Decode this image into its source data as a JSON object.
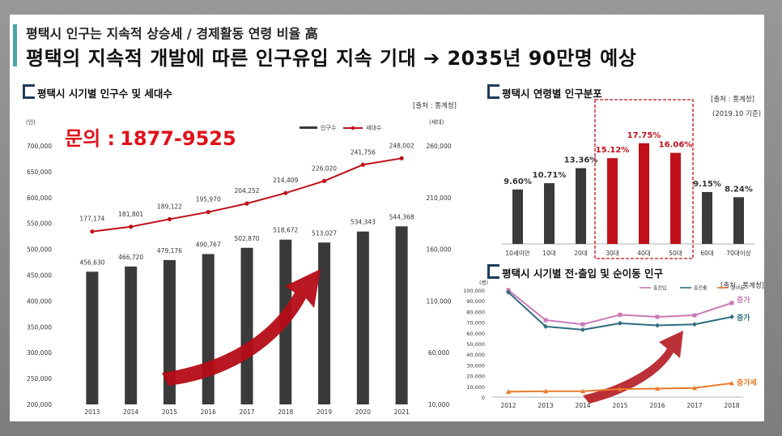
{
  "header": {
    "subtitle": "평택시 인구는 지속적 상승세 / 경제활동 연령 비율 高",
    "title": "평택의 지속적 개발에 따른 인구유입 지속 기대 ➔ 2035년 90만명 예상"
  },
  "contact": {
    "label": "문의 :",
    "phone": "1877-9525"
  },
  "colors": {
    "bar_dark": "#3a3a3a",
    "line_red": "#c0101a",
    "highlight_red": "#c0101a",
    "line_pink": "#c87ab8",
    "line_teal": "#2f6d80",
    "line_orange": "#e87a2a",
    "accent_teal": "#4fa3a7"
  },
  "chart_data": [
    {
      "type": "bar",
      "title": "평택시 시기별 인구수 및 세대수",
      "source": "[출처 : 통계청]",
      "ylabel_left": "(인)",
      "ylabel_right": "(세대)",
      "legend_position": "top-right",
      "categories": [
        "2013",
        "2014",
        "2015",
        "2016",
        "2017",
        "2018",
        "2019",
        "2020",
        "2021"
      ],
      "left_ticks": [
        "700,000",
        "650,000",
        "600,000",
        "550,000",
        "500,000",
        "450,000",
        "400,000",
        "350,000",
        "300,000",
        "250,000",
        "200,000"
      ],
      "right_ticks": [
        "260,000",
        "210,000",
        "160,000",
        "110,000",
        "60,000",
        "10,000"
      ],
      "ylim": [
        200000,
        700000
      ],
      "ylim_right": [
        10000,
        260000
      ],
      "series": [
        {
          "name": "인구수",
          "kind": "bar",
          "axis": "left",
          "values": [
            456630,
            466720,
            479176,
            490767,
            502870,
            518672,
            513027,
            534343,
            544368
          ],
          "labels": [
            "456,630",
            "466,720",
            "479,176",
            "490,767",
            "502,870",
            "518,672",
            "513,027",
            "534,343",
            "544,368"
          ]
        },
        {
          "name": "세대수",
          "kind": "line",
          "axis": "right",
          "values": [
            177174,
            181801,
            189122,
            195970,
            204252,
            214409,
            226020,
            241756,
            248002
          ],
          "labels": [
            "177,174",
            "181,801",
            "189,122",
            "195,970",
            "204,252",
            "214,409",
            "226,020",
            "241,756",
            "248,002"
          ]
        }
      ]
    },
    {
      "type": "bar",
      "title": "평택시 연령별 인구분포",
      "source": "[출처 : 통계청]",
      "note": "(2019.10 기준)",
      "categories": [
        "10세미만",
        "10대",
        "20대",
        "30대",
        "40대",
        "50대",
        "60대",
        "70대이상"
      ],
      "values": [
        9.6,
        10.71,
        13.36,
        15.12,
        17.75,
        16.06,
        9.15,
        8.24
      ],
      "labels": [
        "9.60%",
        "10.71%",
        "13.36%",
        "15.12%",
        "17.75%",
        "16.06%",
        "9.15%",
        "8.24%"
      ],
      "highlight": [
        "30대",
        "40대",
        "50대"
      ],
      "ylim": [
        0,
        20
      ]
    },
    {
      "type": "line",
      "title": "평택시 시기별 전·출입 및 순이동 인구",
      "source": "[출처 : 통계청]",
      "ylabel": "(명)",
      "x": [
        "2012",
        "2013",
        "2014",
        "2015",
        "2016",
        "2017",
        "2018"
      ],
      "y_ticks": [
        "100,000",
        "90,000",
        "80,000",
        "70,000",
        "60,000",
        "50,000",
        "40,000",
        "30,000",
        "20,000",
        "10,000",
        "0"
      ],
      "ylim": [
        0,
        100000
      ],
      "legend_position": "top-right",
      "series": [
        {
          "name": "총전입",
          "values": [
            100000,
            72000,
            68000,
            77000,
            75000,
            76500,
            88000
          ],
          "end_label": "증가"
        },
        {
          "name": "총전출",
          "values": [
            98000,
            66000,
            63000,
            69000,
            67000,
            68000,
            75000
          ],
          "end_label": "증가"
        },
        {
          "name": "순이동",
          "values": [
            5000,
            5500,
            5500,
            7500,
            8000,
            8500,
            13000
          ],
          "end_label": "증가세"
        }
      ]
    }
  ]
}
